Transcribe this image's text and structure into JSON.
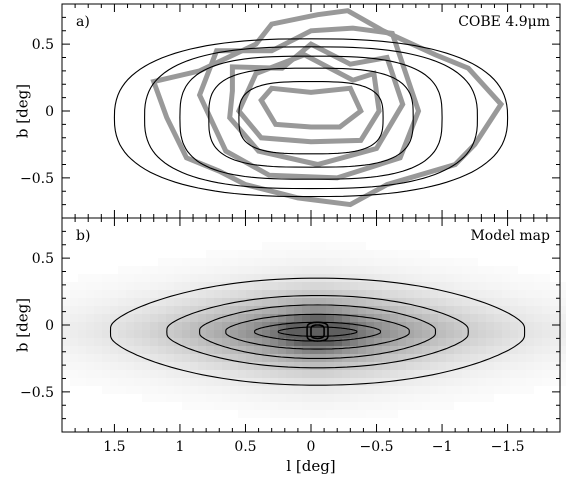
{
  "chart_data": [
    {
      "type": "contour",
      "panel_label": "a)",
      "annotation": "COBE 4.9μm",
      "xlabel": "",
      "ylabel": "b [deg]",
      "xlim": [
        1.9,
        -1.9
      ],
      "ylim": [
        -0.8,
        0.8
      ],
      "xticks": [
        1.5,
        1,
        0.5,
        0,
        -0.5,
        -1,
        -1.5
      ],
      "yticks": [
        0.5,
        0,
        -0.5
      ],
      "ytick_labels": [
        "0.5",
        "0",
        "−0.5"
      ],
      "show_xtick_labels": false,
      "model_contours": {
        "color": "#000000",
        "center": [
          0.0,
          -0.05
        ],
        "levels": [
          {
            "half_width_l": 0.55,
            "half_height_b": 0.27,
            "squareness": 3.2
          },
          {
            "half_width_l": 0.78,
            "half_height_b": 0.37,
            "squareness": 3.2
          },
          {
            "half_width_l": 1.0,
            "half_height_b": 0.46,
            "squareness": 3.0
          },
          {
            "half_width_l": 1.27,
            "half_height_b": 0.53,
            "squareness": 2.7
          },
          {
            "half_width_l": 1.5,
            "half_height_b": 0.59,
            "squareness": 2.5
          }
        ]
      },
      "data_contours": {
        "color": "#999999",
        "polygons": [
          [
            [
              0.3,
              0.17
            ],
            [
              0.0,
              0.14
            ],
            [
              -0.3,
              0.17
            ],
            [
              -0.38,
              0.0
            ],
            [
              -0.22,
              -0.12
            ],
            [
              0.0,
              -0.12
            ],
            [
              0.27,
              -0.1
            ],
            [
              0.38,
              0.08
            ]
          ],
          [
            [
              0.42,
              0.28
            ],
            [
              0.05,
              0.42
            ],
            [
              -0.32,
              0.23
            ],
            [
              -0.48,
              0.28
            ],
            [
              -0.52,
              0.0
            ],
            [
              -0.38,
              -0.22
            ],
            [
              0.0,
              -0.23
            ],
            [
              0.38,
              -0.2
            ],
            [
              0.55,
              0.0
            ]
          ],
          [
            [
              0.6,
              0.33
            ],
            [
              0.22,
              0.32
            ],
            [
              0.0,
              0.5
            ],
            [
              -0.3,
              0.35
            ],
            [
              -0.58,
              0.4
            ],
            [
              -0.7,
              0.05
            ],
            [
              -0.5,
              -0.28
            ],
            [
              -0.05,
              -0.4
            ],
            [
              0.4,
              -0.3
            ],
            [
              0.62,
              -0.05
            ],
            [
              0.6,
              0.15
            ]
          ],
          [
            [
              0.72,
              0.45
            ],
            [
              0.3,
              0.45
            ],
            [
              0.0,
              0.6
            ],
            [
              -0.32,
              0.62
            ],
            [
              -0.62,
              0.58
            ],
            [
              -0.82,
              0.0
            ],
            [
              -0.68,
              -0.35
            ],
            [
              -0.2,
              -0.5
            ],
            [
              0.32,
              -0.48
            ],
            [
              0.65,
              -0.3
            ],
            [
              0.85,
              0.12
            ]
          ],
          [
            [
              1.2,
              0.22
            ],
            [
              0.85,
              0.3
            ],
            [
              0.42,
              0.5
            ],
            [
              0.3,
              0.65
            ],
            [
              -0.05,
              0.72
            ],
            [
              -0.28,
              0.75
            ],
            [
              -0.55,
              0.6
            ],
            [
              -0.95,
              0.42
            ],
            [
              -1.2,
              0.32
            ],
            [
              -1.45,
              0.05
            ],
            [
              -1.25,
              -0.25
            ],
            [
              -1.1,
              -0.4
            ],
            [
              -0.58,
              -0.55
            ],
            [
              -0.3,
              -0.7
            ],
            [
              0.1,
              -0.65
            ],
            [
              0.5,
              -0.55
            ],
            [
              0.7,
              -0.45
            ],
            [
              0.95,
              -0.35
            ],
            [
              1.1,
              -0.05
            ]
          ]
        ]
      }
    },
    {
      "type": "heatmap",
      "panel_label": "b)",
      "annotation": "Model map",
      "xlabel": "l [deg]",
      "ylabel": "b [deg]",
      "xlim": [
        1.9,
        -1.9
      ],
      "ylim": [
        -0.8,
        0.8
      ],
      "xticks": [
        1.5,
        1,
        0.5,
        0,
        -0.5,
        -1,
        -1.5
      ],
      "xtick_labels": [
        "1.5",
        "1",
        "0.5",
        "0",
        "−0.5",
        "−1",
        "−1.5"
      ],
      "yticks": [
        0.5,
        0,
        -0.5
      ],
      "ytick_labels": [
        "0.5",
        "0",
        "−0.5"
      ],
      "show_xtick_labels": true,
      "center": [
        -0.05,
        -0.05
      ],
      "contour_color": "#000000",
      "contour_levels": [
        {
          "half_width_l": 1.58,
          "half_height_b": 0.4,
          "pinch": 0.9
        },
        {
          "half_width_l": 1.15,
          "half_height_b": 0.27,
          "pinch": 0.95
        },
        {
          "half_width_l": 0.9,
          "half_height_b": 0.2,
          "pinch": 0.95
        },
        {
          "half_width_l": 0.7,
          "half_height_b": 0.13,
          "pinch": 1.0
        },
        {
          "half_width_l": 0.48,
          "half_height_b": 0.07,
          "pinch": 1.1
        },
        {
          "half_width_l": 0.3,
          "half_height_b": 0.035,
          "pinch": 1.3
        },
        {
          "half_width_l": 0.08,
          "half_height_b": 0.07,
          "pinch": 0.0
        },
        {
          "half_width_l": 0.05,
          "half_height_b": 0.05,
          "pinch": 0.0
        }
      ]
    }
  ]
}
